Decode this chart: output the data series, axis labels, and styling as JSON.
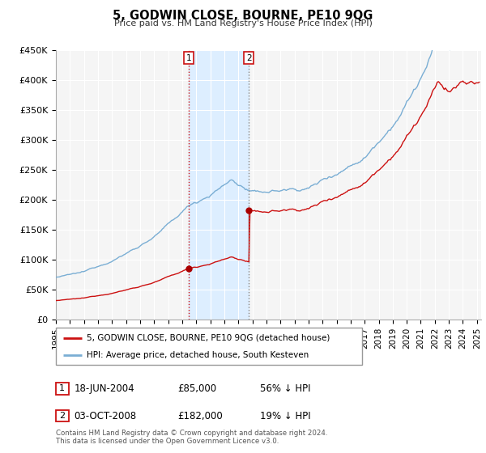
{
  "title": "5, GODWIN CLOSE, BOURNE, PE10 9QG",
  "subtitle": "Price paid vs. HM Land Registry's House Price Index (HPI)",
  "ylim": [
    0,
    450000
  ],
  "yticks": [
    0,
    50000,
    100000,
    150000,
    200000,
    250000,
    300000,
    350000,
    400000,
    450000
  ],
  "ytick_labels": [
    "£0",
    "£50K",
    "£100K",
    "£150K",
    "£200K",
    "£250K",
    "£300K",
    "£350K",
    "£400K",
    "£450K"
  ],
  "xlim_start": 1995.0,
  "xlim_end": 2025.3,
  "xtick_years": [
    1995,
    1996,
    1997,
    1998,
    1999,
    2000,
    2001,
    2002,
    2003,
    2004,
    2005,
    2006,
    2007,
    2008,
    2009,
    2010,
    2011,
    2012,
    2013,
    2014,
    2015,
    2016,
    2017,
    2018,
    2019,
    2020,
    2021,
    2022,
    2023,
    2024,
    2025
  ],
  "hpi_color": "#7aaed4",
  "price_color": "#cc1111",
  "dot_color": "#aa0000",
  "shaded_color": "#ddeeff",
  "vline1_color": "#cc1111",
  "vline2_color": "#888888",
  "sale1_date_num": 2004.46,
  "sale1_price": 85000,
  "sale2_date_num": 2008.75,
  "sale2_price": 182000,
  "legend1_text": "5, GODWIN CLOSE, BOURNE, PE10 9QG (detached house)",
  "legend2_text": "HPI: Average price, detached house, South Kesteven",
  "annotation1_date": "18-JUN-2004",
  "annotation1_price": "£85,000",
  "annotation1_pct": "56% ↓ HPI",
  "annotation2_date": "03-OCT-2008",
  "annotation2_price": "£182,000",
  "annotation2_pct": "19% ↓ HPI",
  "footer": "Contains HM Land Registry data © Crown copyright and database right 2024.\nThis data is licensed under the Open Government Licence v3.0.",
  "bg_color": "#f5f5f5",
  "grid_color": "#ffffff"
}
